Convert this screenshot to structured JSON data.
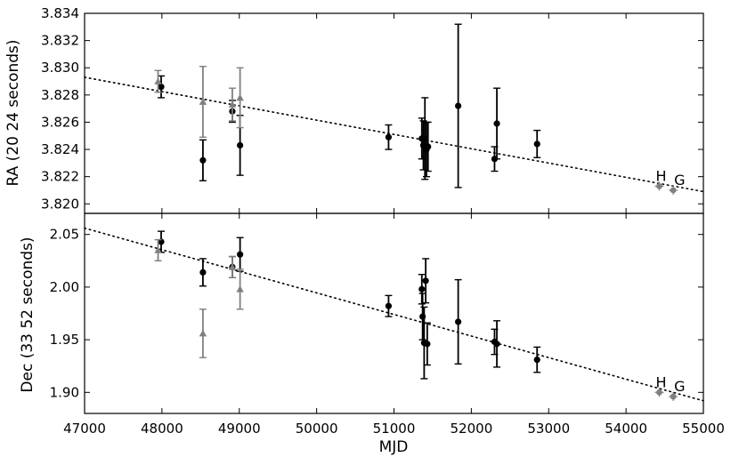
{
  "chart_data": [
    {
      "type": "scatter",
      "panel": "top",
      "ylabel": "RA (20 24 seconds)",
      "xlabel": "",
      "xlim": [
        47000,
        55000
      ],
      "ylim": [
        3.8193,
        3.834
      ],
      "yticks": [
        3.82,
        3.822,
        3.824,
        3.826,
        3.828,
        3.83,
        3.832,
        3.834
      ],
      "ytick_labels": [
        "3.820",
        "3.822",
        "3.824",
        "3.826",
        "3.828",
        "3.830",
        "3.832",
        "3.834"
      ],
      "colors": {
        "black_series": "#000000",
        "gray_series": "#808080",
        "fit": "#000000"
      },
      "series": [
        {
          "marker": "circle",
          "color": "#000000",
          "points": [
            {
              "x": 47990,
              "y": 3.8286,
              "err": 0.0008
            },
            {
              "x": 48530,
              "y": 3.8232,
              "err": 0.0015
            },
            {
              "x": 48910,
              "y": 3.8268,
              "err": 0.0008
            },
            {
              "x": 49010,
              "y": 3.8243,
              "err": 0.0022
            },
            {
              "x": 50930,
              "y": 3.8249,
              "err": 0.0009
            },
            {
              "x": 51360,
              "y": 3.8248,
              "err": 0.0015
            },
            {
              "x": 51380,
              "y": 3.8243,
              "err": 0.0018
            },
            {
              "x": 51400,
              "y": 3.8248,
              "err": 0.003
            },
            {
              "x": 51420,
              "y": 3.824,
              "err": 0.002
            },
            {
              "x": 51440,
              "y": 3.8242,
              "err": 0.0018
            },
            {
              "x": 51830,
              "y": 3.8272,
              "err": 0.006
            },
            {
              "x": 52300,
              "y": 3.8233,
              "err": 0.0009
            },
            {
              "x": 52330,
              "y": 3.8259,
              "err": 0.0026
            },
            {
              "x": 52850,
              "y": 3.8244,
              "err": 0.001
            }
          ]
        },
        {
          "marker": "triangle",
          "color": "#808080",
          "points": [
            {
              "x": 47950,
              "y": 3.829,
              "err": 0.0008
            },
            {
              "x": 48530,
              "y": 3.8275,
              "err": 0.0026
            },
            {
              "x": 48910,
              "y": 3.8273,
              "err": 0.0012
            },
            {
              "x": 49010,
              "y": 3.8278,
              "err": 0.0022
            }
          ]
        },
        {
          "marker": "star",
          "color": "#808080",
          "points": [
            {
              "x": 54430,
              "y": 3.8213,
              "label": "H"
            },
            {
              "x": 54610,
              "y": 3.821,
              "label": "G"
            }
          ]
        }
      ],
      "fit_line": {
        "style": "dotted",
        "x": [
          47000,
          55000
        ],
        "y": [
          3.8293,
          3.8209
        ]
      },
      "annotations": [
        "H",
        "G"
      ]
    },
    {
      "type": "scatter",
      "panel": "bottom",
      "ylabel": "Dec (33 52 seconds)",
      "xlabel": "MJD",
      "xlim": [
        47000,
        55000
      ],
      "ylim": [
        1.88,
        2.07
      ],
      "yticks": [
        1.9,
        1.95,
        2.0,
        2.05
      ],
      "ytick_labels": [
        "1.90",
        "1.95",
        "2.00",
        "2.05"
      ],
      "xticks": [
        47000,
        48000,
        49000,
        50000,
        51000,
        52000,
        53000,
        54000,
        55000
      ],
      "xtick_labels": [
        "47000",
        "48000",
        "49000",
        "50000",
        "51000",
        "52000",
        "53000",
        "54000",
        "55000"
      ],
      "series": [
        {
          "marker": "circle",
          "color": "#000000",
          "points": [
            {
              "x": 47990,
              "y": 2.043,
              "err": 0.01
            },
            {
              "x": 48530,
              "y": 2.014,
              "err": 0.013
            },
            {
              "x": 48910,
              "y": 2.019,
              "err": 0.01
            },
            {
              "x": 49010,
              "y": 2.031,
              "err": 0.016
            },
            {
              "x": 50930,
              "y": 1.982,
              "err": 0.01
            },
            {
              "x": 51360,
              "y": 1.998,
              "err": 0.014
            },
            {
              "x": 51370,
              "y": 1.972,
              "err": 0.022
            },
            {
              "x": 51390,
              "y": 1.947,
              "err": 0.034
            },
            {
              "x": 51410,
              "y": 2.006,
              "err": 0.021
            },
            {
              "x": 51430,
              "y": 1.946,
              "err": 0.02
            },
            {
              "x": 51830,
              "y": 1.967,
              "err": 0.04
            },
            {
              "x": 52300,
              "y": 1.948,
              "err": 0.012
            },
            {
              "x": 52330,
              "y": 1.946,
              "err": 0.022
            },
            {
              "x": 52850,
              "y": 1.931,
              "err": 0.012
            }
          ]
        },
        {
          "marker": "triangle",
          "color": "#808080",
          "points": [
            {
              "x": 47950,
              "y": 2.035,
              "err": 0.01
            },
            {
              "x": 48530,
              "y": 1.956,
              "err": 0.023
            },
            {
              "x": 48910,
              "y": 2.019,
              "err": 0.01
            },
            {
              "x": 49010,
              "y": 1.998,
              "err": 0.019
            }
          ]
        },
        {
          "marker": "star",
          "color": "#808080",
          "points": [
            {
              "x": 54430,
              "y": 1.9,
              "label": "H"
            },
            {
              "x": 54610,
              "y": 1.896,
              "label": "G"
            }
          ]
        }
      ],
      "fit_line": {
        "style": "dotted",
        "x": [
          47000,
          55000
        ],
        "y": [
          2.056,
          1.892
        ]
      },
      "annotations": [
        "H",
        "G"
      ]
    }
  ]
}
